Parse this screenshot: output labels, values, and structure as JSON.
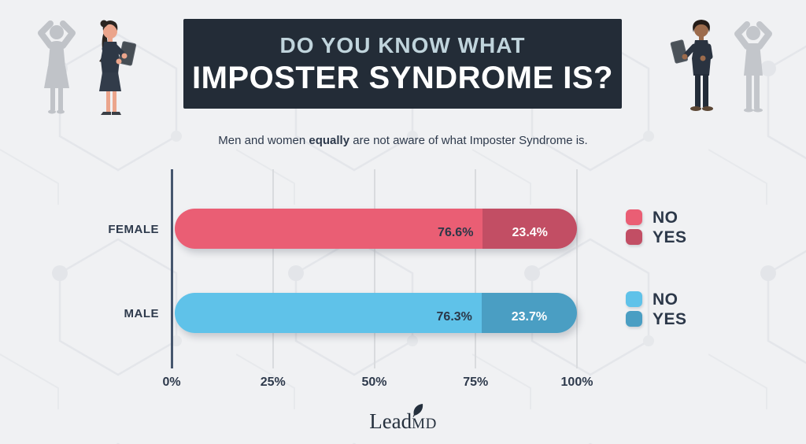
{
  "header": {
    "title_line1": "DO YOU KNOW WHAT",
    "title_line2": "IMPOSTER SYNDROME IS?"
  },
  "subtitle": {
    "prefix": "Men and women ",
    "emphasis": "equally",
    "suffix": " are not aware of what Imposter Syndrome is."
  },
  "chart_data": {
    "type": "bar",
    "orientation": "horizontal",
    "stacked": true,
    "title": "Do you know what Imposter Syndrome is?",
    "categories": [
      "FEMALE",
      "MALE"
    ],
    "series": [
      {
        "name": "NO",
        "values": [
          76.6,
          76.3
        ]
      },
      {
        "name": "YES",
        "values": [
          23.4,
          23.7
        ]
      }
    ],
    "x_ticks": [
      "0%",
      "25%",
      "50%",
      "75%",
      "100%"
    ],
    "xlim": [
      0,
      100
    ],
    "grid": true,
    "legend_position": "right",
    "rows": [
      {
        "category": "FEMALE",
        "no_value": 76.6,
        "no_label": "76.6%",
        "no_color": "#ea5e74",
        "yes_value": 23.4,
        "yes_label": "23.4%",
        "yes_color": "#c24e64"
      },
      {
        "category": "MALE",
        "no_value": 76.3,
        "no_label": "76.3%",
        "no_color": "#5fc2e9",
        "yes_value": 23.7,
        "yes_label": "23.7%",
        "yes_color": "#4a9ec3"
      }
    ],
    "legends": [
      {
        "items": [
          {
            "label": "NO",
            "color": "#ea5e74"
          },
          {
            "label": "YES",
            "color": "#c24e64"
          }
        ]
      },
      {
        "items": [
          {
            "label": "NO",
            "color": "#5fc2e9"
          },
          {
            "label": "YES",
            "color": "#4a9ec3"
          }
        ]
      }
    ]
  },
  "footer": {
    "logo_lead": "Lead",
    "logo_md": "MD"
  },
  "icons": {
    "logo_leaf": "leaf-icon"
  },
  "illustrations": {
    "left": "businesswoman holding tablet with confused shadow silhouette",
    "right": "businessman holding tablet with confused shadow silhouette"
  },
  "colors": {
    "background": "#f0f1f3",
    "header_bg": "#232c37",
    "title_accent": "#c0d4dc",
    "navy_text": "#2c3849",
    "axis": "#46566e",
    "gridline": "#d9dbde"
  }
}
